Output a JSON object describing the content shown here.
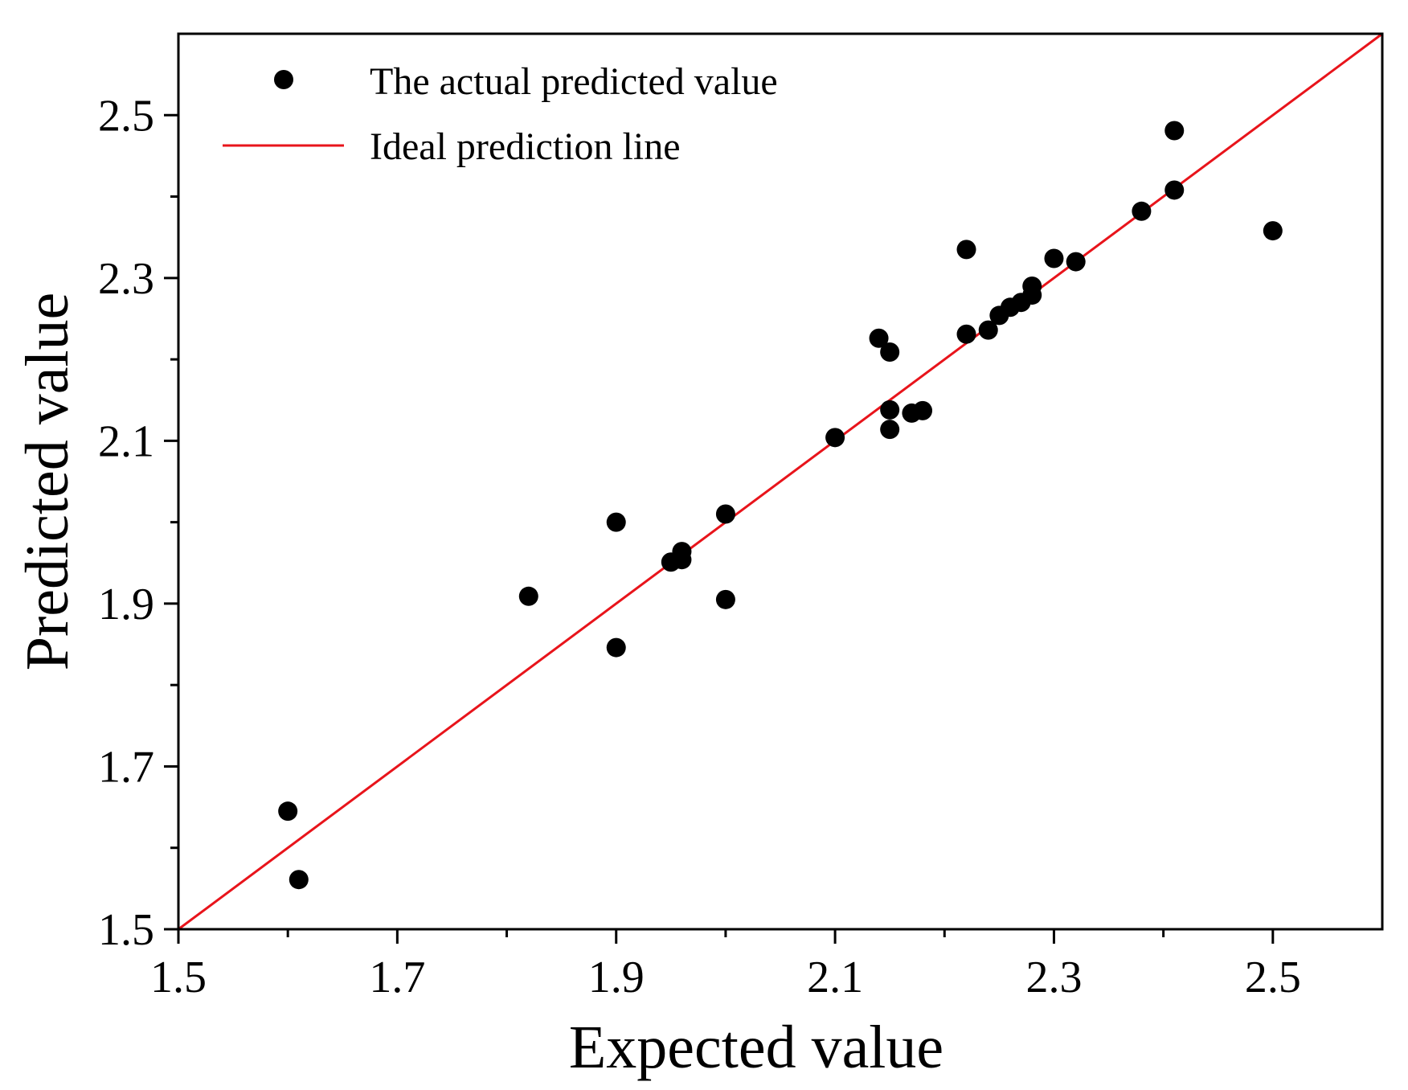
{
  "chart_data": {
    "type": "scatter",
    "title": "",
    "xlabel": "Expected value",
    "ylabel": "Predicted value",
    "xlim": [
      1.5,
      2.6
    ],
    "ylim": [
      1.5,
      2.6
    ],
    "x_ticks": [
      1.5,
      1.7,
      1.9,
      2.1,
      2.3,
      2.5
    ],
    "y_ticks": [
      1.5,
      1.7,
      1.9,
      2.1,
      2.3,
      2.5
    ],
    "x_tick_labels": [
      "1.5",
      "1.7",
      "1.9",
      "2.1",
      "2.3",
      "2.5"
    ],
    "y_tick_labels": [
      "1.5",
      "1.7",
      "1.9",
      "2.1",
      "2.3",
      "2.5"
    ],
    "x_minor_ticks": [
      1.6,
      1.8,
      2.0,
      2.2,
      2.4
    ],
    "y_minor_ticks": [
      1.6,
      1.8,
      2.0,
      2.2,
      2.4
    ],
    "grid": false,
    "legend_position": "top-left",
    "series": [
      {
        "name": "The actual predicted value",
        "kind": "scatter",
        "color": "#000000",
        "points": [
          {
            "x": 1.6,
            "y": 1.645
          },
          {
            "x": 1.61,
            "y": 1.561
          },
          {
            "x": 1.82,
            "y": 1.909
          },
          {
            "x": 1.9,
            "y": 2.0
          },
          {
            "x": 1.9,
            "y": 1.846
          },
          {
            "x": 1.95,
            "y": 1.951
          },
          {
            "x": 1.96,
            "y": 1.964
          },
          {
            "x": 1.96,
            "y": 1.954
          },
          {
            "x": 2.0,
            "y": 2.01
          },
          {
            "x": 2.0,
            "y": 1.905
          },
          {
            "x": 2.1,
            "y": 2.104
          },
          {
            "x": 2.14,
            "y": 2.226
          },
          {
            "x": 2.15,
            "y": 2.209
          },
          {
            "x": 2.15,
            "y": 2.138
          },
          {
            "x": 2.15,
            "y": 2.114
          },
          {
            "x": 2.17,
            "y": 2.134
          },
          {
            "x": 2.18,
            "y": 2.137
          },
          {
            "x": 2.22,
            "y": 2.335
          },
          {
            "x": 2.22,
            "y": 2.231
          },
          {
            "x": 2.24,
            "y": 2.236
          },
          {
            "x": 2.25,
            "y": 2.254
          },
          {
            "x": 2.26,
            "y": 2.264
          },
          {
            "x": 2.27,
            "y": 2.27
          },
          {
            "x": 2.28,
            "y": 2.279
          },
          {
            "x": 2.28,
            "y": 2.29
          },
          {
            "x": 2.3,
            "y": 2.324
          },
          {
            "x": 2.32,
            "y": 2.32
          },
          {
            "x": 2.38,
            "y": 2.382
          },
          {
            "x": 2.41,
            "y": 2.481
          },
          {
            "x": 2.41,
            "y": 2.408
          },
          {
            "x": 2.5,
            "y": 2.358
          }
        ]
      },
      {
        "name": "Ideal prediction line",
        "kind": "line",
        "color": "#e8141b",
        "x": [
          1.5,
          2.6
        ],
        "y": [
          1.5,
          2.6
        ]
      }
    ]
  }
}
